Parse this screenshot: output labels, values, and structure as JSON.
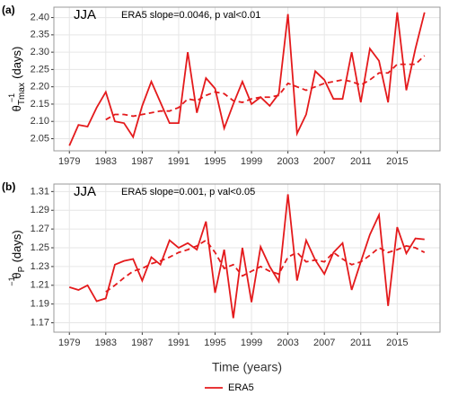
{
  "x_label": "Time (years)",
  "chart_data": [
    {
      "type": "line",
      "panel_label": "(a)",
      "season": "JJA",
      "annotation": "ERA5 slope=0.0046, p val<0.01",
      "y_label": {
        "symbol": "θ",
        "superscript": "−1",
        "subscript": "Tmax",
        "unit": "(days)"
      },
      "x": [
        1979,
        1980,
        1981,
        1982,
        1983,
        1984,
        1985,
        1986,
        1987,
        1988,
        1989,
        1990,
        1991,
        1992,
        1993,
        1994,
        1995,
        1996,
        1997,
        1998,
        1999,
        2000,
        2001,
        2002,
        2003,
        2004,
        2005,
        2006,
        2007,
        2008,
        2009,
        2010,
        2011,
        2012,
        2013,
        2014,
        2015,
        2016,
        2017,
        2018
      ],
      "series": [
        {
          "name": "ERA5",
          "color": "#e41a1c",
          "values": [
            2.03,
            2.09,
            2.085,
            2.14,
            2.185,
            2.1,
            2.095,
            2.055,
            2.145,
            2.215,
            2.155,
            2.095,
            2.095,
            2.3,
            2.125,
            2.225,
            2.195,
            2.08,
            2.15,
            2.215,
            2.15,
            2.17,
            2.145,
            2.18,
            2.41,
            2.065,
            2.12,
            2.245,
            2.22,
            2.165,
            2.165,
            2.3,
            2.155,
            2.31,
            2.275,
            2.155,
            2.415,
            2.19,
            2.31,
            2.415
          ]
        },
        {
          "color": "#e41a1c",
          "dash": true,
          "values": [
            null,
            null,
            null,
            null,
            2.105,
            2.12,
            2.12,
            2.115,
            2.12,
            2.125,
            2.13,
            2.13,
            2.14,
            2.165,
            2.16,
            2.175,
            2.185,
            2.18,
            2.16,
            2.155,
            2.165,
            2.17,
            2.17,
            2.175,
            2.21,
            2.2,
            2.19,
            2.2,
            2.21,
            2.215,
            2.22,
            2.215,
            2.205,
            2.22,
            2.24,
            2.24,
            2.265,
            2.265,
            2.265,
            2.29
          ]
        }
      ],
      "xlim": [
        1977.3,
        2019.7
      ],
      "xticks": [
        1979,
        1983,
        1987,
        1991,
        1995,
        1999,
        2003,
        2007,
        2011,
        2015
      ],
      "ylim": [
        2.015,
        2.43
      ],
      "yticks": [
        {
          "value": 2.05,
          "label": "2.05"
        },
        {
          "value": 2.1,
          "label": "2.10"
        },
        {
          "value": 2.15,
          "label": "2.15"
        },
        {
          "value": 2.2,
          "label": "2.20"
        },
        {
          "value": 2.25,
          "label": "2.25"
        },
        {
          "value": 2.3,
          "label": "2.30"
        },
        {
          "value": 2.35,
          "label": "2.35"
        },
        {
          "value": 2.4,
          "label": "2.40"
        }
      ],
      "grid": true
    },
    {
      "type": "line",
      "panel_label": "(b)",
      "season": "JJA",
      "annotation": "ERA5 slope=0.001, p val<0.05",
      "y_label": {
        "symbol": "θ",
        "superscript": "−1",
        "subscript": "P",
        "unit": "(days)"
      },
      "x": [
        1979,
        1980,
        1981,
        1982,
        1983,
        1984,
        1985,
        1986,
        1987,
        1988,
        1989,
        1990,
        1991,
        1992,
        1993,
        1994,
        1995,
        1996,
        1997,
        1998,
        1999,
        2000,
        2001,
        2002,
        2003,
        2004,
        2005,
        2006,
        2007,
        2008,
        2009,
        2010,
        2011,
        2012,
        2013,
        2014,
        2015,
        2016,
        2017,
        2018
      ],
      "series": [
        {
          "name": "ERA5",
          "color": "#e41a1c",
          "values": [
            1.208,
            1.205,
            1.21,
            1.193,
            1.196,
            1.232,
            1.236,
            1.238,
            1.215,
            1.24,
            1.232,
            1.258,
            1.25,
            1.255,
            1.248,
            1.278,
            1.202,
            1.248,
            1.175,
            1.25,
            1.192,
            1.251,
            1.23,
            1.214,
            1.307,
            1.215,
            1.258,
            1.237,
            1.222,
            1.245,
            1.255,
            1.205,
            1.235,
            1.264,
            1.285,
            1.188,
            1.272,
            1.244,
            1.26,
            1.259
          ]
        },
        {
          "color": "#e41a1c",
          "dash": true,
          "values": [
            null,
            null,
            null,
            null,
            1.203,
            1.21,
            1.218,
            1.225,
            1.228,
            1.233,
            1.236,
            1.24,
            1.245,
            1.248,
            1.252,
            1.258,
            1.245,
            1.228,
            1.232,
            1.22,
            1.225,
            1.23,
            1.225,
            1.222,
            1.24,
            1.245,
            1.235,
            1.237,
            1.235,
            1.245,
            1.238,
            1.232,
            1.235,
            1.242,
            1.25,
            1.245,
            1.248,
            1.252,
            1.25,
            1.245
          ]
        }
      ],
      "xlim": [
        1977.3,
        2019.7
      ],
      "xticks": [
        1979,
        1983,
        1987,
        1991,
        1995,
        1999,
        2003,
        2007,
        2011,
        2015
      ],
      "ylim": [
        1.16,
        1.318
      ],
      "yticks": [
        1.17,
        1.19,
        1.21,
        1.23,
        1.25,
        1.27,
        1.29,
        1.31
      ],
      "grid": true
    }
  ]
}
